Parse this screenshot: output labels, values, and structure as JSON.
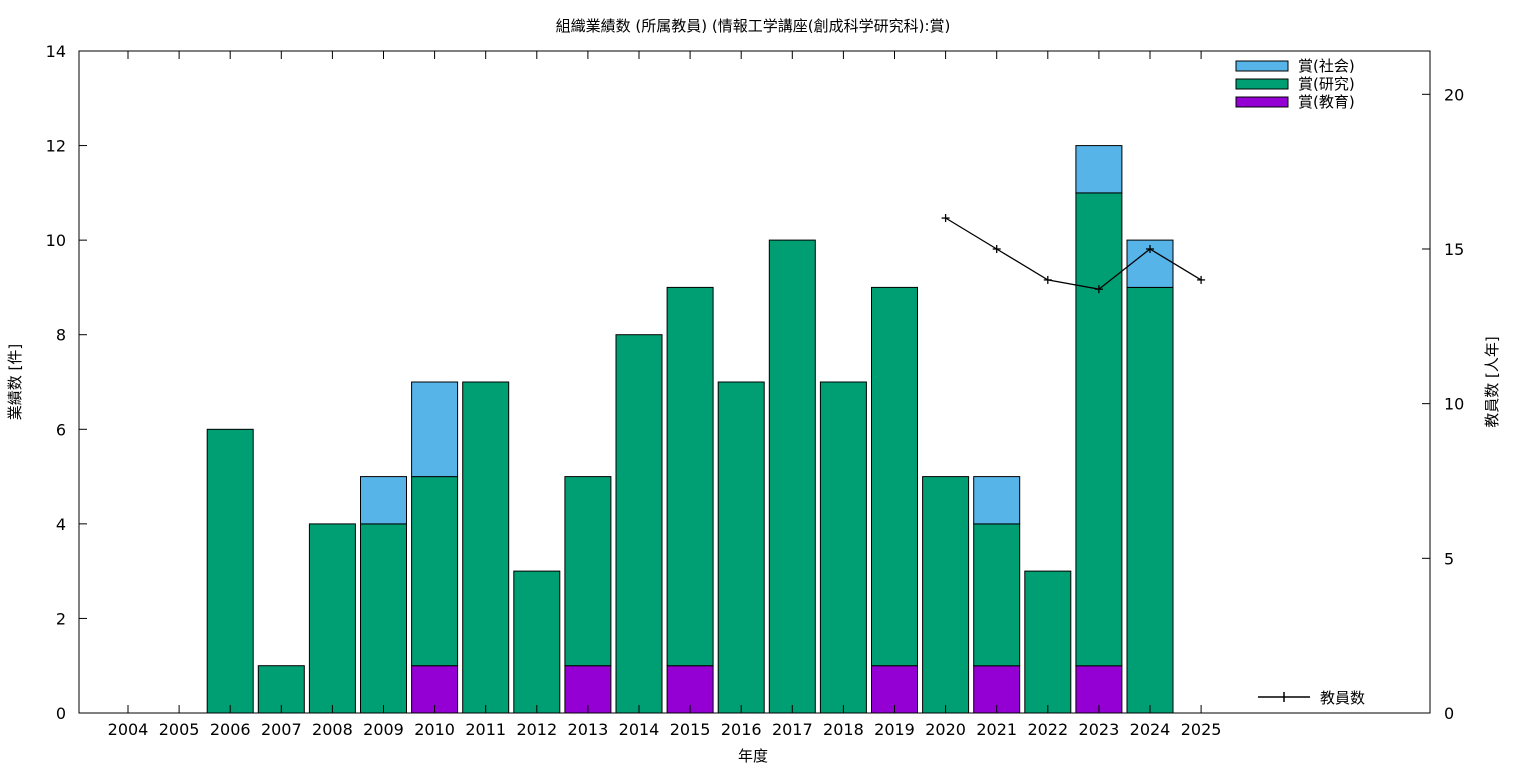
{
  "chart_data": {
    "type": "bar",
    "stacked": true,
    "title": "組織業績数 (所属教員) (情報工学講座(創成科学研究科):賞)",
    "xlabel": "年度",
    "ylabel": "業績数 [件]",
    "y2label": "教員数 [人年]",
    "categories": [
      "2004",
      "2005",
      "2006",
      "2007",
      "2008",
      "2009",
      "2010",
      "2011",
      "2012",
      "2013",
      "2014",
      "2015",
      "2016",
      "2017",
      "2018",
      "2019",
      "2020",
      "2021",
      "2022",
      "2023",
      "2024",
      "2025"
    ],
    "ylim": [
      0,
      14
    ],
    "yticks": [
      "0",
      "2",
      "4",
      "6",
      "8",
      "10",
      "12",
      "14"
    ],
    "y2lim": [
      0,
      21.4
    ],
    "y2ticks": [
      "0",
      "5",
      "10",
      "15",
      "20"
    ],
    "legend_position": "top-right",
    "series": [
      {
        "name": "賞(教育)",
        "color": "#9400d3",
        "values": [
          0,
          0,
          0,
          0,
          0,
          0,
          1,
          0,
          0,
          1,
          0,
          1,
          0,
          0,
          0,
          1,
          0,
          1,
          0,
          1,
          0,
          0
        ]
      },
      {
        "name": "賞(研究)",
        "color": "#009e73",
        "values": [
          0,
          0,
          6,
          1,
          4,
          4,
          4,
          7,
          3,
          4,
          8,
          8,
          7,
          10,
          7,
          8,
          5,
          3,
          3,
          10,
          9,
          0
        ]
      },
      {
        "name": "賞(社会)",
        "color": "#56b4e9",
        "values": [
          0,
          0,
          0,
          0,
          0,
          1,
          2,
          0,
          0,
          0,
          0,
          0,
          0,
          0,
          0,
          0,
          0,
          1,
          0,
          1,
          1,
          0
        ]
      }
    ],
    "line_series": {
      "name": "教員数",
      "color": "#000000",
      "axis": "y2",
      "x": [
        "2020",
        "2021",
        "2022",
        "2023",
        "2024",
        "2025"
      ],
      "values": [
        16,
        15,
        14,
        13.7,
        15,
        14
      ]
    }
  }
}
